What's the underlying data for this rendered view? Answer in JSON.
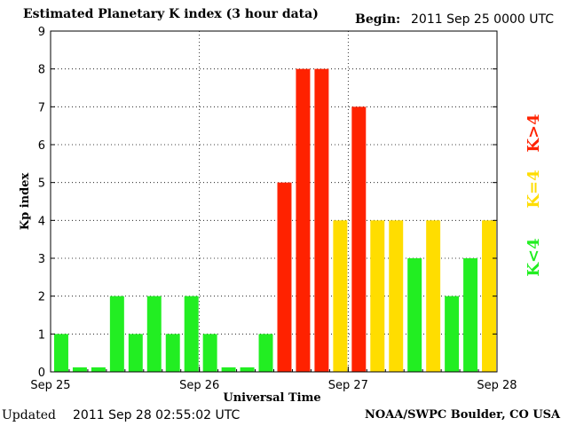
{
  "header": {
    "title": "Estimated Planetary K index (3 hour data)",
    "begin_label": "Begin:",
    "begin_value": "2011 Sep 25 0000 UTC"
  },
  "footer": {
    "updated_label": "Updated",
    "updated_value": "2011 Sep 28 02:55:02 UTC",
    "credit": "NOAA/SWPC Boulder, CO USA"
  },
  "colors": {
    "low": "#22ee22",
    "equal": "#ffdd00",
    "high": "#ff2200",
    "grid": "#000000",
    "background": "#ffffff"
  },
  "legend": [
    {
      "label": "K>4",
      "color": "#ff2200"
    },
    {
      "label": "K=4",
      "color": "#ffdd00"
    },
    {
      "label": "K<4",
      "color": "#22ee22"
    }
  ],
  "chart_data": {
    "type": "bar",
    "title": "Estimated Planetary K index (3 hour data)",
    "xlabel": "Universal Time",
    "ylabel": "Kp index",
    "ylim": [
      0,
      9
    ],
    "yticks": [
      "0",
      "1",
      "2",
      "3",
      "4",
      "5",
      "6",
      "7",
      "8",
      "9"
    ],
    "xtick_labels": [
      "Sep 25",
      "Sep 26",
      "Sep 27",
      "Sep 28"
    ],
    "grid": true,
    "interval_hours": 3,
    "values": [
      1,
      0,
      0,
      2,
      1,
      2,
      1,
      2,
      1,
      0,
      0,
      1,
      5,
      8,
      8,
      4,
      7,
      4,
      4,
      3,
      4,
      2,
      3,
      4
    ]
  }
}
